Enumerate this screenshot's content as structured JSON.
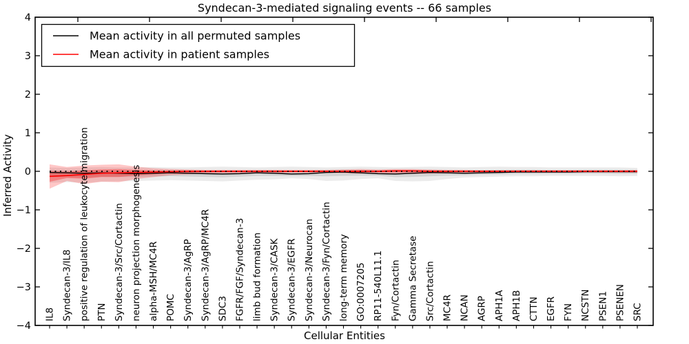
{
  "chart_data": {
    "type": "line",
    "title": "Syndecan-3-mediated signaling events -- 66 samples",
    "xlabel": "Cellular Entities",
    "ylabel": "Inferred Activity",
    "ylim": [
      -4,
      4
    ],
    "grid": false,
    "legend_position": "upper-left",
    "y_ticks": [
      {
        "value": 4,
        "label": "4"
      },
      {
        "value": 3,
        "label": "3"
      },
      {
        "value": 2,
        "label": "2"
      },
      {
        "value": 1,
        "label": "1"
      },
      {
        "value": 0,
        "label": "0"
      },
      {
        "value": -1,
        "label": "−1"
      },
      {
        "value": -2,
        "label": "−2"
      },
      {
        "value": -3,
        "label": "−3"
      },
      {
        "value": -4,
        "label": "−4"
      }
    ],
    "categories": [
      "IL8",
      "Syndecan-3/IL8",
      "positive regulation of leukocyte migration",
      "PTN",
      "Syndecan-3/Src/Cortactin",
      "neuron projection morphogenesis",
      "alpha-MSH/MC4R",
      "POMC",
      "Syndecan-3/AgRP",
      "Syndecan-3/AgRP/MC4R",
      "SDC3",
      "FGFR/FGF/Syndecan-3",
      "limb bud formation",
      "Syndecan-3/CASK",
      "Syndecan-3/EGFR",
      "Syndecan-3/Neurocan",
      "Syndecan-3/Fyn/Cortactin",
      "long-term memory",
      "GO:0007205",
      "RP11-540L11.1",
      "Fyn/Cortactin",
      "Gamma Secretase",
      "Src/Cortactin",
      "MC4R",
      "NCAN",
      "AGRP",
      "APH1A",
      "APH1B",
      "CTTN",
      "EGFR",
      "FYN",
      "NCSTN",
      "PSEN1",
      "PSENEN",
      "SRC"
    ],
    "series": [
      {
        "name": "Mean activity in all permuted samples",
        "color": "#000000",
        "band_color": "#000000",
        "band_alpha_outer": 0.08,
        "band_alpha_inner": 0.1,
        "values": [
          -0.03,
          -0.04,
          -0.05,
          -0.04,
          -0.05,
          -0.06,
          -0.05,
          -0.04,
          -0.05,
          -0.06,
          -0.07,
          -0.06,
          -0.04,
          -0.05,
          -0.07,
          -0.06,
          -0.03,
          -0.02,
          -0.04,
          -0.06,
          -0.07,
          -0.05,
          -0.03,
          -0.04,
          -0.05,
          -0.04,
          -0.03,
          -0.02,
          -0.02,
          -0.02,
          -0.02,
          -0.01,
          -0.01,
          -0.01,
          -0.01
        ],
        "band_upper": [
          0.1,
          0.09,
          0.1,
          0.11,
          0.1,
          0.1,
          0.11,
          0.1,
          0.1,
          0.11,
          0.12,
          0.11,
          0.1,
          0.11,
          0.12,
          0.11,
          0.1,
          0.11,
          0.12,
          0.11,
          0.1,
          0.11,
          0.12,
          0.11,
          0.1,
          0.11,
          0.12,
          0.11,
          0.11,
          0.1,
          0.1,
          0.1,
          0.1,
          0.1,
          0.09
        ],
        "band_lower": [
          -0.3,
          -0.28,
          -0.3,
          -0.27,
          -0.26,
          -0.25,
          -0.24,
          -0.23,
          -0.24,
          -0.25,
          -0.26,
          -0.24,
          -0.22,
          -0.21,
          -0.18,
          -0.2,
          -0.25,
          -0.24,
          -0.2,
          -0.18,
          -0.25,
          -0.26,
          -0.25,
          -0.2,
          -0.16,
          -0.15,
          -0.14,
          -0.13,
          -0.13,
          -0.12,
          -0.12,
          -0.12,
          -0.12,
          -0.13,
          -0.12
        ]
      },
      {
        "name": "Mean activity in patient samples",
        "color": "#ff0000",
        "band_color": "#ff0000",
        "band_alpha_outer": 0.22,
        "band_alpha_inner": 0.3,
        "values": [
          -0.13,
          -0.11,
          -0.08,
          -0.05,
          -0.04,
          -0.03,
          -0.02,
          -0.01,
          0.0,
          0.0,
          0.0,
          0.0,
          0.0,
          0.0,
          0.0,
          0.0,
          0.0,
          0.0,
          0.0,
          0.0,
          0.01,
          0.01,
          0.0,
          0.0,
          0.0,
          0.0,
          0.0,
          0.0,
          0.0,
          0.0,
          0.0,
          0.0,
          0.0,
          0.0,
          0.0
        ],
        "band_upper": [
          0.18,
          0.11,
          0.15,
          0.17,
          0.18,
          0.12,
          0.08,
          0.06,
          0.05,
          0.04,
          0.04,
          0.04,
          0.04,
          0.04,
          0.04,
          0.04,
          0.04,
          0.05,
          0.06,
          0.05,
          0.06,
          0.06,
          0.05,
          0.04,
          0.04,
          0.03,
          0.03,
          0.03,
          0.03,
          0.03,
          0.03,
          0.03,
          0.03,
          0.03,
          0.04
        ],
        "band_lower": [
          -0.45,
          -0.25,
          -0.33,
          -0.27,
          -0.28,
          -0.2,
          -0.15,
          -0.1,
          -0.08,
          -0.06,
          -0.05,
          -0.05,
          -0.05,
          -0.05,
          -0.04,
          -0.04,
          -0.04,
          -0.05,
          -0.06,
          -0.05,
          -0.06,
          -0.07,
          -0.06,
          -0.05,
          -0.04,
          -0.04,
          -0.03,
          -0.03,
          -0.03,
          -0.03,
          -0.03,
          -0.03,
          -0.03,
          -0.03,
          -0.04
        ]
      }
    ],
    "zero_line_value": 0,
    "inner_band_fraction": 0.45,
    "axis_color": "#000000"
  }
}
